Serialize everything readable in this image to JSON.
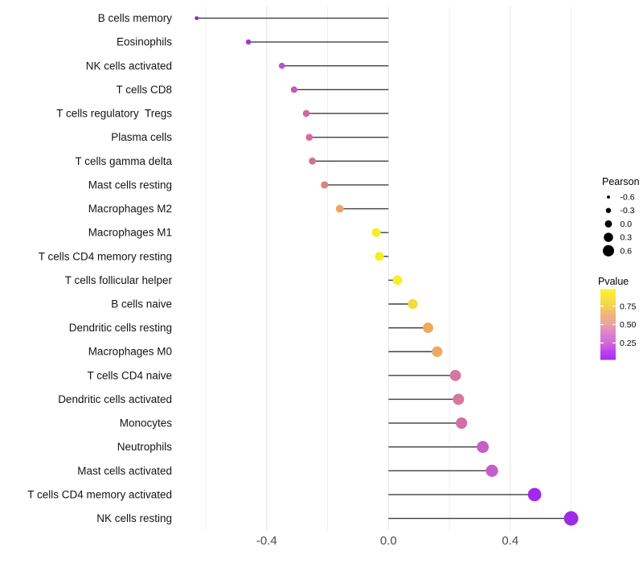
{
  "chart_data": {
    "type": "lollipop",
    "orientation": "horizontal",
    "title": "",
    "xlabel": "",
    "ylabel": "",
    "xlim": [
      -0.69,
      0.655
    ],
    "grid": true,
    "x_ticks": [
      {
        "value": -0.4,
        "label": "-0.4"
      },
      {
        "value": 0.0,
        "label": "0.0"
      },
      {
        "value": 0.4,
        "label": "0.4"
      }
    ],
    "x_gridlines_major": [
      -0.4,
      0.0,
      0.4
    ],
    "x_gridlines_minor": [
      -0.6,
      -0.2,
      0.2,
      0.6
    ],
    "points": [
      {
        "label": "B cells memory",
        "pearson": -0.63,
        "pvalue": 0.04,
        "color": "#7d22d6"
      },
      {
        "label": "Eosinophils",
        "pearson": -0.46,
        "pvalue": 0.15,
        "color": "#9c39d9"
      },
      {
        "label": "NK cells activated",
        "pearson": -0.35,
        "pvalue": 0.28,
        "color": "#bb4fd1"
      },
      {
        "label": "T cells CD8",
        "pearson": -0.31,
        "pvalue": 0.35,
        "color": "#c658b8"
      },
      {
        "label": "T cells regulatory  Tregs",
        "pearson": -0.27,
        "pvalue": 0.42,
        "color": "#d367a5"
      },
      {
        "label": "Plasma cells",
        "pearson": -0.26,
        "pvalue": 0.43,
        "color": "#d56aa1"
      },
      {
        "label": "T cells gamma delta",
        "pearson": -0.25,
        "pvalue": 0.45,
        "color": "#d26f94"
      },
      {
        "label": "Mast cells resting",
        "pearson": -0.21,
        "pvalue": 0.52,
        "color": "#de8279"
      },
      {
        "label": "Macrophages M2",
        "pearson": -0.16,
        "pvalue": 0.63,
        "color": "#efa561"
      },
      {
        "label": "Macrophages M1",
        "pearson": -0.04,
        "pvalue": 0.88,
        "color": "#f4ee27"
      },
      {
        "label": "T cells CD4 memory resting",
        "pearson": -0.03,
        "pvalue": 0.9,
        "color": "#f4ef25"
      },
      {
        "label": "T cells follicular helper",
        "pearson": 0.03,
        "pvalue": 0.92,
        "color": "#f5ef28"
      },
      {
        "label": "B cells naive",
        "pearson": 0.08,
        "pvalue": 0.8,
        "color": "#f4da3a"
      },
      {
        "label": "Dendritic cells resting",
        "pearson": 0.13,
        "pvalue": 0.64,
        "color": "#efa958"
      },
      {
        "label": "Macrophages M0",
        "pearson": 0.16,
        "pvalue": 0.62,
        "color": "#f0a964"
      },
      {
        "label": "T cells CD4 naive",
        "pearson": 0.22,
        "pvalue": 0.46,
        "color": "#d4789d"
      },
      {
        "label": "Dendritic cells activated",
        "pearson": 0.23,
        "pvalue": 0.46,
        "color": "#d4789d"
      },
      {
        "label": "Monocytes",
        "pearson": 0.24,
        "pvalue": 0.44,
        "color": "#d36fa5"
      },
      {
        "label": "Neutrophils",
        "pearson": 0.31,
        "pvalue": 0.3,
        "color": "#c75ec4"
      },
      {
        "label": "Mast cells activated",
        "pearson": 0.34,
        "pvalue": 0.27,
        "color": "#c45ecb"
      },
      {
        "label": "T cells CD4 memory activated",
        "pearson": 0.48,
        "pvalue": 0.08,
        "color": "#a428ef"
      },
      {
        "label": "NK cells resting",
        "pearson": 0.6,
        "pvalue": 0.05,
        "color": "#9d2ce2"
      }
    ],
    "size_legend": {
      "title": "Pearson",
      "entries": [
        {
          "value": -0.6,
          "label": "-0.6"
        },
        {
          "value": -0.3,
          "label": "-0.3"
        },
        {
          "value": 0.0,
          "label": "0.0"
        },
        {
          "value": 0.3,
          "label": "0.3"
        },
        {
          "value": 0.6,
          "label": "0.6"
        }
      ],
      "key_color": "#000000"
    },
    "color_legend": {
      "title": "Pvalue",
      "ticks": [
        {
          "value": 0.75,
          "label": "0.75"
        },
        {
          "value": 0.5,
          "label": "0.50"
        },
        {
          "value": 0.25,
          "label": "0.25"
        }
      ],
      "gradient": [
        [
          "0%",
          "#f9f42a"
        ],
        [
          "10%",
          "#f7e53b"
        ],
        [
          "24%",
          "#f6d054"
        ],
        [
          "38%",
          "#efb081"
        ],
        [
          "50%",
          "#eaa4a4"
        ],
        [
          "62%",
          "#dc82cc"
        ],
        [
          "76%",
          "#d26ad8"
        ],
        [
          "88%",
          "#bb45ec"
        ],
        [
          "100%",
          "#a82df2"
        ]
      ]
    },
    "colors": {
      "background": "#ffffff",
      "grid_major": "#e4e4e4",
      "grid_minor": "#efefef",
      "stem": "#3f3f3f",
      "x_tick_text": "#4d4d4d",
      "y_label_text": "#141414",
      "legend_text": "#000000"
    }
  }
}
